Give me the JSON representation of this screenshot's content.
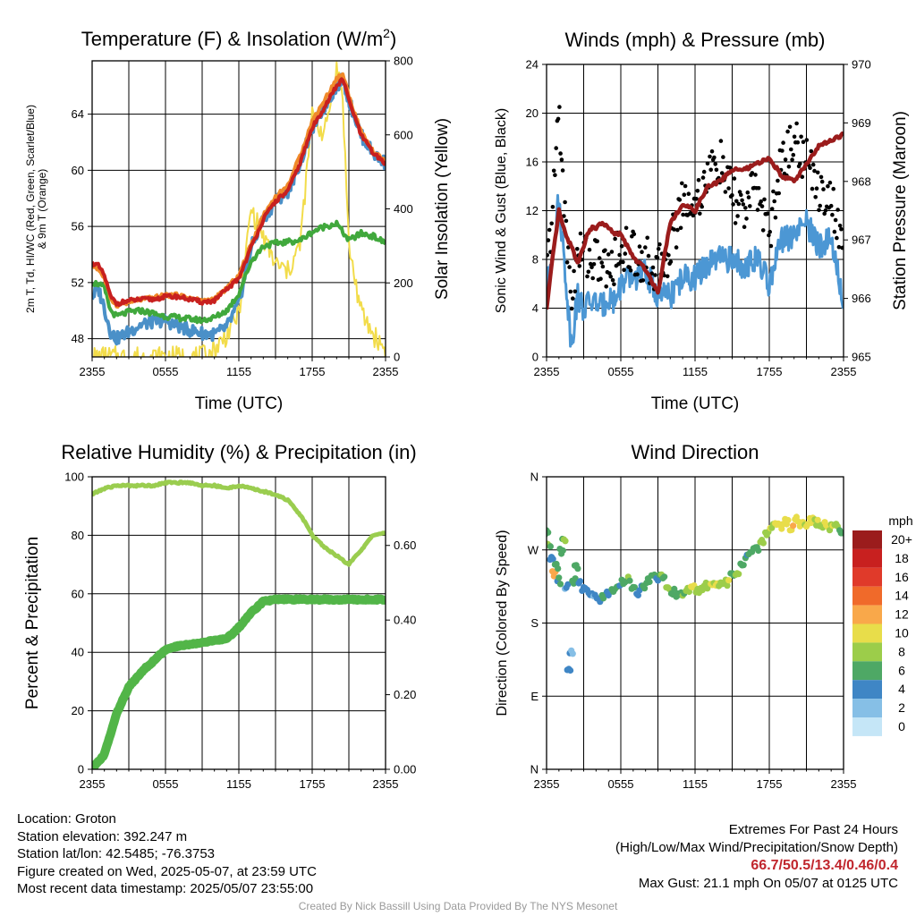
{
  "colors": {
    "temp": "#c8201f",
    "dewpoint": "#40a83c",
    "wind_chill": "#4a90c8",
    "temp9m": "#f08a2a",
    "insolation": "#f2dc4a",
    "gust": "#000000",
    "pressure": "#9b1c1c",
    "wind": "#4c97d4",
    "rh": "#9acd4f",
    "precip": "#52b548"
  },
  "chart_data": [
    {
      "type": "line",
      "title": "Temperature (F) & Insolation (W/m²)",
      "xlabel": "Time (UTC)",
      "ylabel": "2m T, Td, HI/WC (Red, Green, Scarlet/Blue) & 9m T (Orange)",
      "ylabel_right": "Solar Insolation (Yellow)",
      "x_ticks": [
        "2355",
        "0555",
        "1155",
        "1755",
        "2355"
      ],
      "y_ticks": [
        "48",
        "52",
        "56",
        "60",
        "64"
      ],
      "y_ticks_right": [
        "0",
        "200",
        "400",
        "600",
        "800"
      ],
      "ylim": [
        46.7,
        67.8
      ],
      "ylim_right": [
        0,
        800
      ],
      "x_hours": [
        0,
        0.5,
        1,
        1.5,
        2,
        3,
        4,
        5,
        6,
        7,
        8,
        9,
        10,
        11,
        12,
        13,
        14,
        15,
        16,
        17,
        18,
        19,
        20,
        20.5,
        21,
        22,
        23,
        24
      ],
      "series": [
        {
          "name": "2m T",
          "color_key": "temp",
          "values": [
            53.4,
            53.2,
            52.5,
            51.0,
            50.5,
            50.7,
            50.8,
            50.8,
            51.0,
            51.0,
            50.8,
            50.6,
            50.7,
            51.5,
            52.3,
            54.5,
            56.5,
            57.8,
            58.5,
            60.5,
            63.0,
            64.5,
            66.0,
            66.5,
            65.0,
            62.5,
            61.2,
            60.5
          ]
        },
        {
          "name": "9m T",
          "color_key": "temp9m",
          "values": [
            53.2,
            53.0,
            52.3,
            50.9,
            50.4,
            50.6,
            50.8,
            50.9,
            51.1,
            51.1,
            50.9,
            50.7,
            50.8,
            51.6,
            52.5,
            54.7,
            56.8,
            58.1,
            58.9,
            61.0,
            63.5,
            65.0,
            66.5,
            66.9,
            65.3,
            62.7,
            61.3,
            60.6
          ]
        },
        {
          "name": "Td",
          "color_key": "dewpoint",
          "values": [
            52.0,
            51.9,
            51.6,
            50.0,
            49.6,
            49.9,
            50.0,
            49.8,
            49.6,
            49.5,
            49.4,
            49.3,
            49.5,
            50.0,
            51.2,
            53.5,
            54.6,
            54.8,
            54.9,
            55.0,
            55.6,
            56.0,
            56.2,
            55.6,
            55.0,
            55.5,
            55.3,
            54.8
          ]
        },
        {
          "name": "WC",
          "color_key": "wind_chill",
          "values": [
            51.0,
            51.6,
            50.2,
            48.5,
            48.0,
            48.5,
            49.0,
            49.2,
            49.3,
            48.9,
            48.6,
            48.4,
            48.3,
            48.8,
            50.5,
            54.5,
            56.5,
            57.8,
            58.5,
            60.5,
            63.0,
            64.5,
            66.0,
            66.5,
            65.0,
            62.5,
            61.2,
            60.5
          ]
        }
      ],
      "series_right": [
        {
          "name": "Insolation",
          "color_key": "insolation",
          "values": [
            0,
            0,
            0,
            0,
            0,
            0,
            0,
            0,
            0,
            0,
            0,
            0,
            20,
            60,
            120,
            400,
            320,
            250,
            230,
            300,
            650,
            600,
            780,
            700,
            300,
            120,
            60,
            20
          ]
        }
      ]
    },
    {
      "type": "line",
      "title": "Winds (mph) & Pressure (mb)",
      "xlabel": "Time (UTC)",
      "ylabel": "Sonic Wind & Gust (Blue, Black)",
      "ylabel_right": "Station Pressure (Maroon)",
      "x_ticks": [
        "2355",
        "0555",
        "1155",
        "1755",
        "2355"
      ],
      "y_ticks": [
        "0",
        "4",
        "8",
        "12",
        "16",
        "20",
        "24"
      ],
      "y_ticks_right": [
        "965",
        "966",
        "967",
        "968",
        "969",
        "970"
      ],
      "ylim": [
        0,
        24
      ],
      "ylim_right": [
        965,
        970
      ],
      "x_hours": [
        0,
        0.5,
        1,
        1.5,
        2,
        2.5,
        3,
        3.5,
        4,
        4.5,
        5,
        5.5,
        6,
        7,
        8,
        9,
        10,
        11,
        12,
        13,
        14,
        15,
        16,
        17,
        18,
        19,
        20,
        21,
        22,
        23,
        24
      ],
      "series": [
        {
          "name": "Sonic Wind",
          "color_key": "wind",
          "values": [
            5.5,
            9,
            13,
            7,
            1,
            5,
            4,
            4.5,
            4.5,
            4,
            5,
            4.5,
            6,
            6.5,
            7,
            5,
            5,
            6.5,
            6.5,
            7.5,
            8,
            8,
            7.5,
            8,
            6,
            9.5,
            10,
            11,
            9,
            10,
            4
          ]
        },
        {
          "name": "Gust",
          "color_key": "gust",
          "values": [
            7,
            12,
            21,
            11,
            5,
            8,
            9,
            8,
            8,
            7.5,
            7,
            8,
            9,
            8.5,
            8,
            7,
            9,
            13,
            12.5,
            15,
            16,
            13,
            12,
            14,
            10,
            16,
            18,
            16,
            14,
            13,
            8
          ]
        }
      ],
      "series_right": [
        {
          "name": "Pressure",
          "color_key": "pressure",
          "values": [
            965.8,
            966.7,
            967.5,
            967.1,
            966.9,
            966.6,
            966.9,
            967.2,
            967.2,
            967.3,
            967.2,
            967.1,
            967.1,
            966.7,
            966.5,
            966.1,
            967.3,
            967.6,
            967.5,
            967.9,
            968.0,
            968.2,
            968.2,
            968.3,
            968.4,
            968.1,
            968.0,
            968.3,
            968.6,
            968.7,
            968.8
          ]
        }
      ]
    },
    {
      "type": "line",
      "title": "Relative Humidity (%) & Precipitation (in)",
      "xlabel": "",
      "ylabel": "Percent & Precipitation",
      "x_ticks": [
        "2355",
        "0555",
        "1155",
        "1755",
        "2355"
      ],
      "y_ticks": [
        "0",
        "20",
        "40",
        "60",
        "80",
        "100"
      ],
      "y_ticks_right": [
        "0.00",
        "0.20",
        "0.40",
        "0.60"
      ],
      "ylim": [
        0,
        100
      ],
      "ylim_right": [
        0,
        0.784
      ],
      "x_hours": [
        0,
        1,
        2,
        3,
        4,
        5,
        6,
        7,
        8,
        9,
        10,
        11,
        12,
        13,
        14,
        15,
        16,
        17,
        17.5,
        18,
        19,
        20,
        21,
        22,
        23,
        24
      ],
      "series": [
        {
          "name": "RH",
          "color_key": "rh",
          "values": [
            94,
            96,
            97,
            97,
            97,
            97,
            98,
            98,
            98,
            97,
            97,
            96,
            97,
            96,
            95,
            94,
            92,
            87,
            84,
            80,
            76,
            73,
            70,
            75,
            80,
            81
          ]
        }
      ],
      "series_right": [
        {
          "name": "Precipitation",
          "color_key": "precip",
          "values": [
            0,
            0.04,
            0.15,
            0.22,
            0.26,
            0.29,
            0.32,
            0.33,
            0.335,
            0.34,
            0.345,
            0.35,
            0.38,
            0.42,
            0.45,
            0.455,
            0.455,
            0.455,
            0.455,
            0.455,
            0.455,
            0.455,
            0.455,
            0.455,
            0.455,
            0.455
          ]
        }
      ]
    },
    {
      "type": "scatter",
      "title": "Wind Direction",
      "xlabel": "",
      "ylabel": "Direction (Colored By Speed)",
      "x_ticks": [
        "2355",
        "0555",
        "1155",
        "1755",
        "2355"
      ],
      "y_ticks": [
        "N",
        "E",
        "S",
        "W",
        "N"
      ],
      "ylim": [
        0,
        360
      ],
      "legend_title": "mph",
      "legend_labels": [
        "20+",
        "18",
        "16",
        "14",
        "12",
        "10",
        "8",
        "6",
        "4",
        "2",
        "0"
      ],
      "legend_colors": [
        "#9b1c1c",
        "#c8201f",
        "#e03a2a",
        "#f06a2a",
        "#f9a84a",
        "#e8dd4a",
        "#9ccd4a",
        "#4ea865",
        "#3f86c5",
        "#86bfe6",
        "#c5e6f7"
      ],
      "legend_position": "right",
      "points_hours": [
        0,
        0.2,
        0.4,
        0.6,
        0.8,
        1.0,
        1.2,
        1.4,
        1.6,
        1.8,
        2.0,
        2.2,
        2.4,
        2.6,
        3.0,
        3.4,
        3.8,
        4.2,
        4.6,
        5.0,
        5.4,
        5.8,
        6.2,
        6.6,
        7.0,
        7.4,
        7.8,
        8.2,
        8.6,
        9.0,
        9.4,
        9.8,
        10.2,
        10.6,
        11.0,
        11.4,
        11.8,
        12.2,
        12.6,
        13.0,
        13.4,
        13.8,
        14.2,
        14.6,
        15.0,
        15.4,
        15.8,
        16.2,
        16.6,
        17.0,
        17.4,
        17.8,
        18.2,
        18.6,
        19.0,
        19.4,
        19.8,
        20.2,
        20.6,
        21.0,
        21.4,
        21.8,
        22.2,
        22.6,
        23.0,
        23.4,
        23.8
      ],
      "points_dir": [
        290,
        275,
        262,
        240,
        250,
        232,
        268,
        280,
        225,
        120,
        145,
        232,
        250,
        228,
        222,
        218,
        215,
        210,
        212,
        216,
        222,
        225,
        230,
        235,
        222,
        218,
        224,
        232,
        240,
        236,
        238,
        224,
        218,
        215,
        216,
        220,
        225,
        218,
        222,
        226,
        228,
        226,
        232,
        230,
        238,
        242,
        254,
        262,
        268,
        272,
        282,
        290,
        298,
        302,
        300,
        305,
        298,
        308,
        302,
        300,
        306,
        304,
        300,
        302,
        298,
        300,
        292
      ],
      "points_speed": [
        6,
        7,
        4,
        12,
        6,
        5,
        6,
        7,
        3,
        4,
        3,
        5,
        6,
        5,
        4,
        4,
        3,
        4,
        5,
        4,
        6,
        5,
        6,
        7,
        6,
        4,
        5,
        6,
        6,
        5,
        7,
        7,
        6,
        6,
        7,
        8,
        9,
        8,
        9,
        8,
        9,
        9,
        8,
        9,
        6,
        7,
        6,
        5,
        6,
        6,
        8,
        8,
        9,
        10,
        11,
        10,
        11,
        10,
        10,
        9,
        10,
        9,
        8,
        10,
        9,
        8,
        6
      ]
    }
  ],
  "footer": {
    "location": "Location: Groton",
    "elevation": "Station elevation: 392.247 m",
    "latlon": "Station lat/lon: 42.5485; -76.3753",
    "created": "Figure created on Wed, 2025-05-07, at 23:59 UTC",
    "recent": "Most recent data timestamp: 2025/05/07 23:55:00",
    "extremes_title": "Extremes For Past 24 Hours",
    "extremes_subtitle": "(High/Low/Max Wind/Precipitation/Snow Depth)",
    "extremes_values": "66.7/50.5/13.4/0.46/0.4",
    "max_gust": "Max Gust: 21.1 mph On 05/07 at 0125 UTC",
    "credit": "Created By Nick Bassill Using Data Provided By The NYS Mesonet"
  }
}
